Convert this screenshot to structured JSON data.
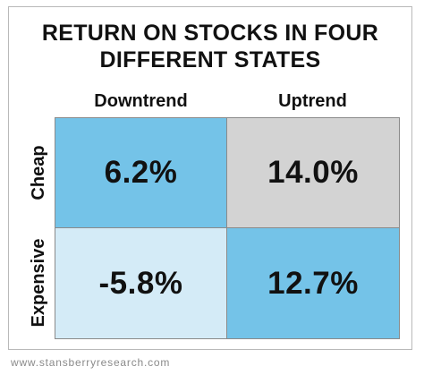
{
  "chart_data": {
    "type": "heatmap",
    "title": "RETURN ON STOCKS IN FOUR DIFFERENT STATES",
    "title_lines": [
      "RETURN ON STOCKS IN FOUR",
      "DIFFERENT STATES"
    ],
    "columns": [
      "Downtrend",
      "Uptrend"
    ],
    "rows": [
      "Cheap",
      "Expensive"
    ],
    "values": [
      [
        6.2,
        14.0
      ],
      [
        -5.8,
        12.7
      ]
    ],
    "labels": [
      [
        "6.2%",
        "14.0%"
      ],
      [
        "-5.8%",
        "12.7%"
      ]
    ],
    "colors": [
      [
        "#74c3e8",
        "#d3d3d3"
      ],
      [
        "#d4ebf7",
        "#74c3e8"
      ]
    ],
    "source": "www.stansberryresearch.com"
  }
}
